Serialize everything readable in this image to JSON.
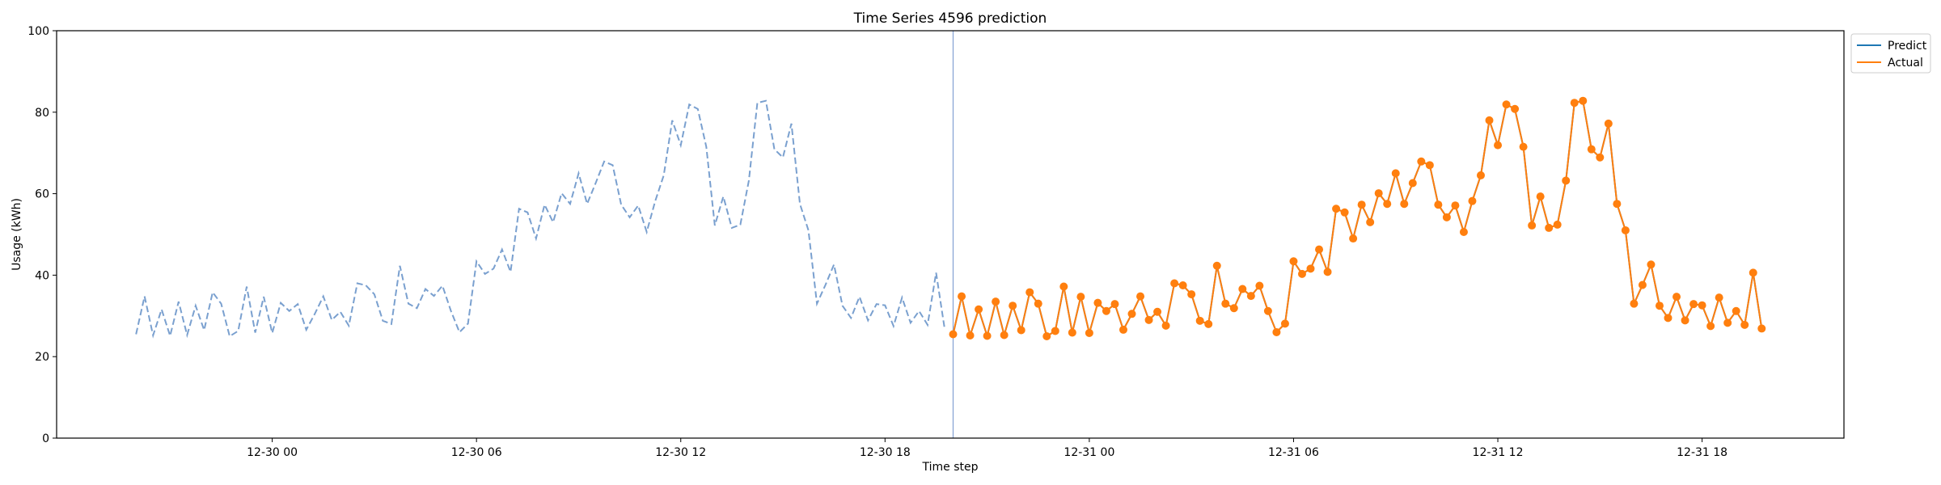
{
  "chart_data": {
    "type": "line",
    "title": "Time Series 4596 prediction",
    "xlabel": "Time step",
    "ylabel": "Usage (kWh)",
    "ylim": [
      0,
      100
    ],
    "yticks": [
      0,
      20,
      40,
      60,
      80,
      100
    ],
    "x_start": "2021-12-29 20:00",
    "x_end": "2021-12-31 20:00",
    "step_minutes": 15,
    "xlim": [
      "2021-12-29 17:40",
      "2021-12-31 22:10"
    ],
    "xticks": [
      {
        "time": "2021-12-30 00:00",
        "label": "12-30 00"
      },
      {
        "time": "2021-12-30 06:00",
        "label": "12-30 06"
      },
      {
        "time": "2021-12-30 12:00",
        "label": "12-30 12"
      },
      {
        "time": "2021-12-30 18:00",
        "label": "12-30 18"
      },
      {
        "time": "2021-12-31 00:00",
        "label": "12-31 00"
      },
      {
        "time": "2021-12-31 06:00",
        "label": "12-31 06"
      },
      {
        "time": "2021-12-31 12:00",
        "label": "12-31 12"
      },
      {
        "time": "2021-12-31 18:00",
        "label": "12-31 18"
      }
    ],
    "vline_time": "2021-12-30 20:00",
    "legend": {
      "position": "top-right",
      "entries": [
        "Predict",
        "Actual"
      ]
    },
    "grid": false,
    "colors": {
      "history": "#7aa0cf",
      "predict": "#1f77b4",
      "actual": "#ff7f0e",
      "vline": "#8aa6d6"
    },
    "series": [
      {
        "name": "History",
        "style": "dashed",
        "values": [
          25.5,
          34.8,
          25.2,
          31.6,
          25.1,
          33.5,
          25.3,
          32.5,
          26.5,
          35.8,
          33.0,
          25.0,
          26.3,
          37.2,
          25.9,
          34.7,
          25.8,
          33.2,
          31.2,
          32.9,
          26.6,
          30.5,
          34.8,
          29.0,
          31.0,
          27.6,
          38.0,
          37.5,
          35.3,
          28.8,
          28.0,
          42.3,
          33.0,
          31.9,
          36.6,
          34.9,
          37.4,
          31.2,
          26.0,
          28.1,
          43.4,
          40.3,
          41.6,
          46.3,
          40.8,
          56.3,
          55.4,
          49.0,
          57.3,
          53.0,
          60.1,
          57.5,
          65.0,
          57.5,
          62.6,
          67.9,
          67.0,
          57.3,
          54.2,
          57.1,
          50.6,
          58.2,
          64.5,
          78.0,
          71.9,
          81.9,
          80.8,
          71.5,
          52.2,
          59.3,
          51.6,
          52.4,
          63.2,
          82.3,
          82.8,
          70.9,
          68.9,
          77.2,
          57.5,
          51.0,
          33.0,
          37.6,
          42.6,
          32.5,
          29.5,
          34.7,
          28.9,
          32.9,
          32.6,
          27.5,
          34.5,
          28.3,
          31.2,
          27.8,
          40.6,
          26.9
        ]
      },
      {
        "name": "Predict",
        "style": "solid",
        "values": [
          25.5,
          34.8,
          25.2,
          31.6,
          25.1,
          33.5,
          25.3,
          32.5,
          26.5,
          35.8,
          33.0,
          25.0,
          26.3,
          37.2,
          25.9,
          34.7,
          25.8,
          33.2,
          31.2,
          32.9,
          26.6,
          30.5,
          34.8,
          29.0,
          31.0,
          27.6,
          38.0,
          37.5,
          35.3,
          28.8,
          28.0,
          42.3,
          33.0,
          31.9,
          36.6,
          34.9,
          37.4,
          31.2,
          26.0,
          28.1,
          43.4,
          40.3,
          41.6,
          46.3,
          40.8,
          56.3,
          55.4,
          49.0,
          57.3,
          53.0,
          60.1,
          57.5,
          65.0,
          57.5,
          62.6,
          67.9,
          67.0,
          57.3,
          54.2,
          57.1,
          50.6,
          58.2,
          64.5,
          78.0,
          71.9,
          81.9,
          80.8,
          71.5,
          52.2,
          59.3,
          51.6,
          52.4,
          63.2,
          82.3,
          82.8,
          70.9,
          68.9,
          77.2,
          57.5,
          51.0,
          33.0,
          37.6,
          42.6,
          32.5,
          29.5,
          34.7,
          28.9,
          32.9,
          32.6,
          27.5,
          34.5,
          28.3,
          31.2,
          27.8,
          40.6,
          26.9
        ]
      },
      {
        "name": "Actual",
        "style": "solid-markers",
        "values": [
          25.5,
          34.8,
          25.2,
          31.6,
          25.1,
          33.5,
          25.3,
          32.5,
          26.5,
          35.8,
          33.0,
          25.0,
          26.3,
          37.2,
          25.9,
          34.7,
          25.8,
          33.2,
          31.2,
          32.9,
          26.6,
          30.5,
          34.8,
          29.0,
          31.0,
          27.6,
          38.0,
          37.5,
          35.3,
          28.8,
          28.0,
          42.3,
          33.0,
          31.9,
          36.6,
          34.9,
          37.4,
          31.2,
          26.0,
          28.1,
          43.4,
          40.3,
          41.6,
          46.3,
          40.8,
          56.3,
          55.4,
          49.0,
          57.3,
          53.0,
          60.1,
          57.5,
          65.0,
          57.5,
          62.6,
          67.9,
          67.0,
          57.3,
          54.2,
          57.1,
          50.6,
          58.2,
          64.5,
          78.0,
          71.9,
          81.9,
          80.8,
          71.5,
          52.2,
          59.3,
          51.6,
          52.4,
          63.2,
          82.3,
          82.8,
          70.9,
          68.9,
          77.2,
          57.5,
          51.0,
          33.0,
          37.6,
          42.6,
          32.5,
          29.5,
          34.7,
          28.9,
          32.9,
          32.6,
          27.5,
          34.5,
          28.3,
          31.2,
          27.8,
          40.6,
          26.9
        ]
      }
    ]
  }
}
